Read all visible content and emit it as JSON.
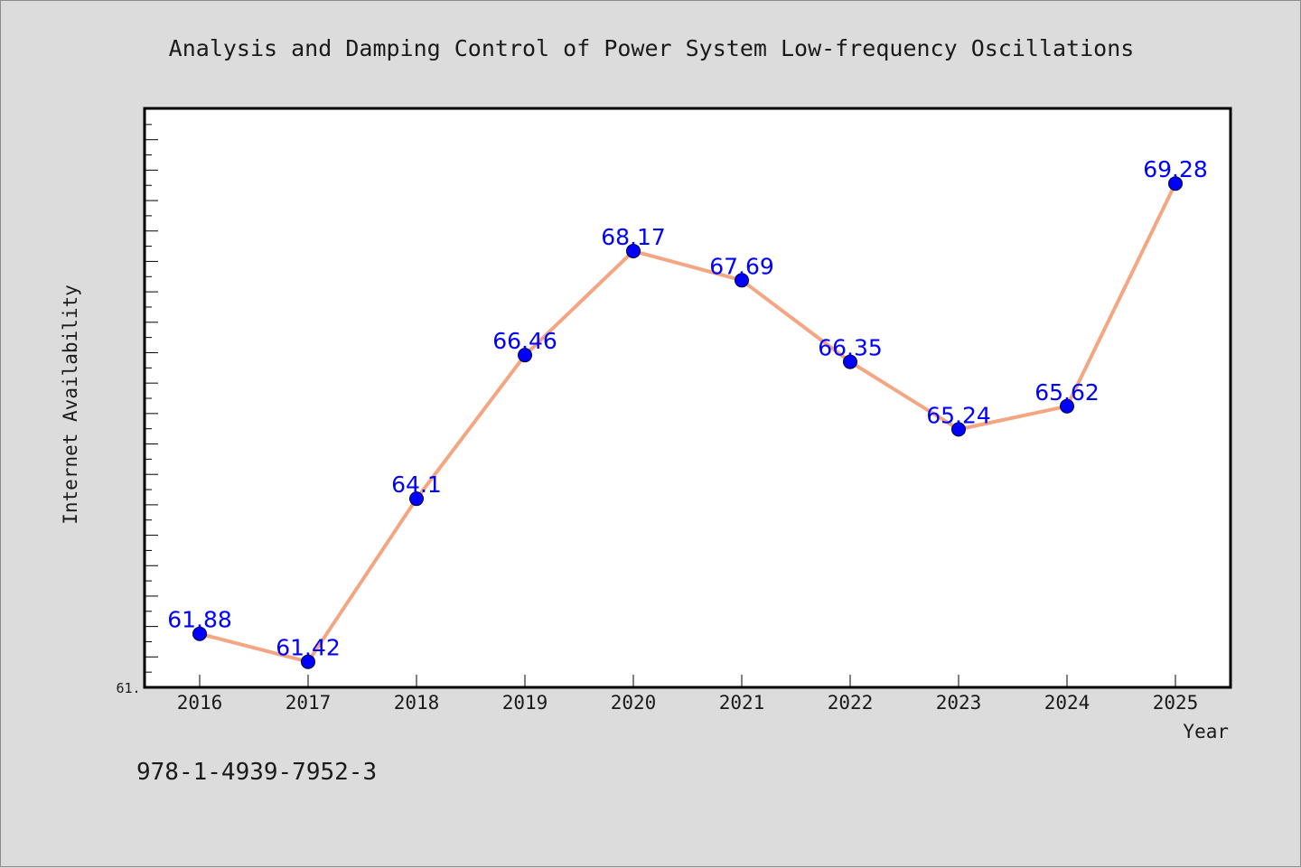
{
  "chart_data": {
    "type": "line",
    "title": "Analysis and Damping Control of Power System Low-frequency Oscillations",
    "xlabel": "Year",
    "ylabel": "Internet Availability",
    "x": [
      "2016",
      "2017",
      "2018",
      "2019",
      "2020",
      "2021",
      "2022",
      "2023",
      "2024",
      "2025"
    ],
    "series": [
      {
        "values": [
          61.88,
          61.42,
          64.1,
          66.46,
          68.17,
          67.69,
          66.35,
          65.24,
          65.62,
          69.28
        ],
        "data_labels": [
          "61.88",
          "61.42",
          "64.1",
          "66.46",
          "68.17",
          "67.69",
          "66.35",
          "65.24",
          "65.62",
          "69.28"
        ],
        "line_color": "#f4a582",
        "marker_color": "#0000ff"
      }
    ],
    "ylim": [
      61.0,
      70.5
    ],
    "y_min_label": "61.",
    "grid": false,
    "legend": "none"
  },
  "footer": {
    "isbn": "978-1-4939-7952-3"
  }
}
